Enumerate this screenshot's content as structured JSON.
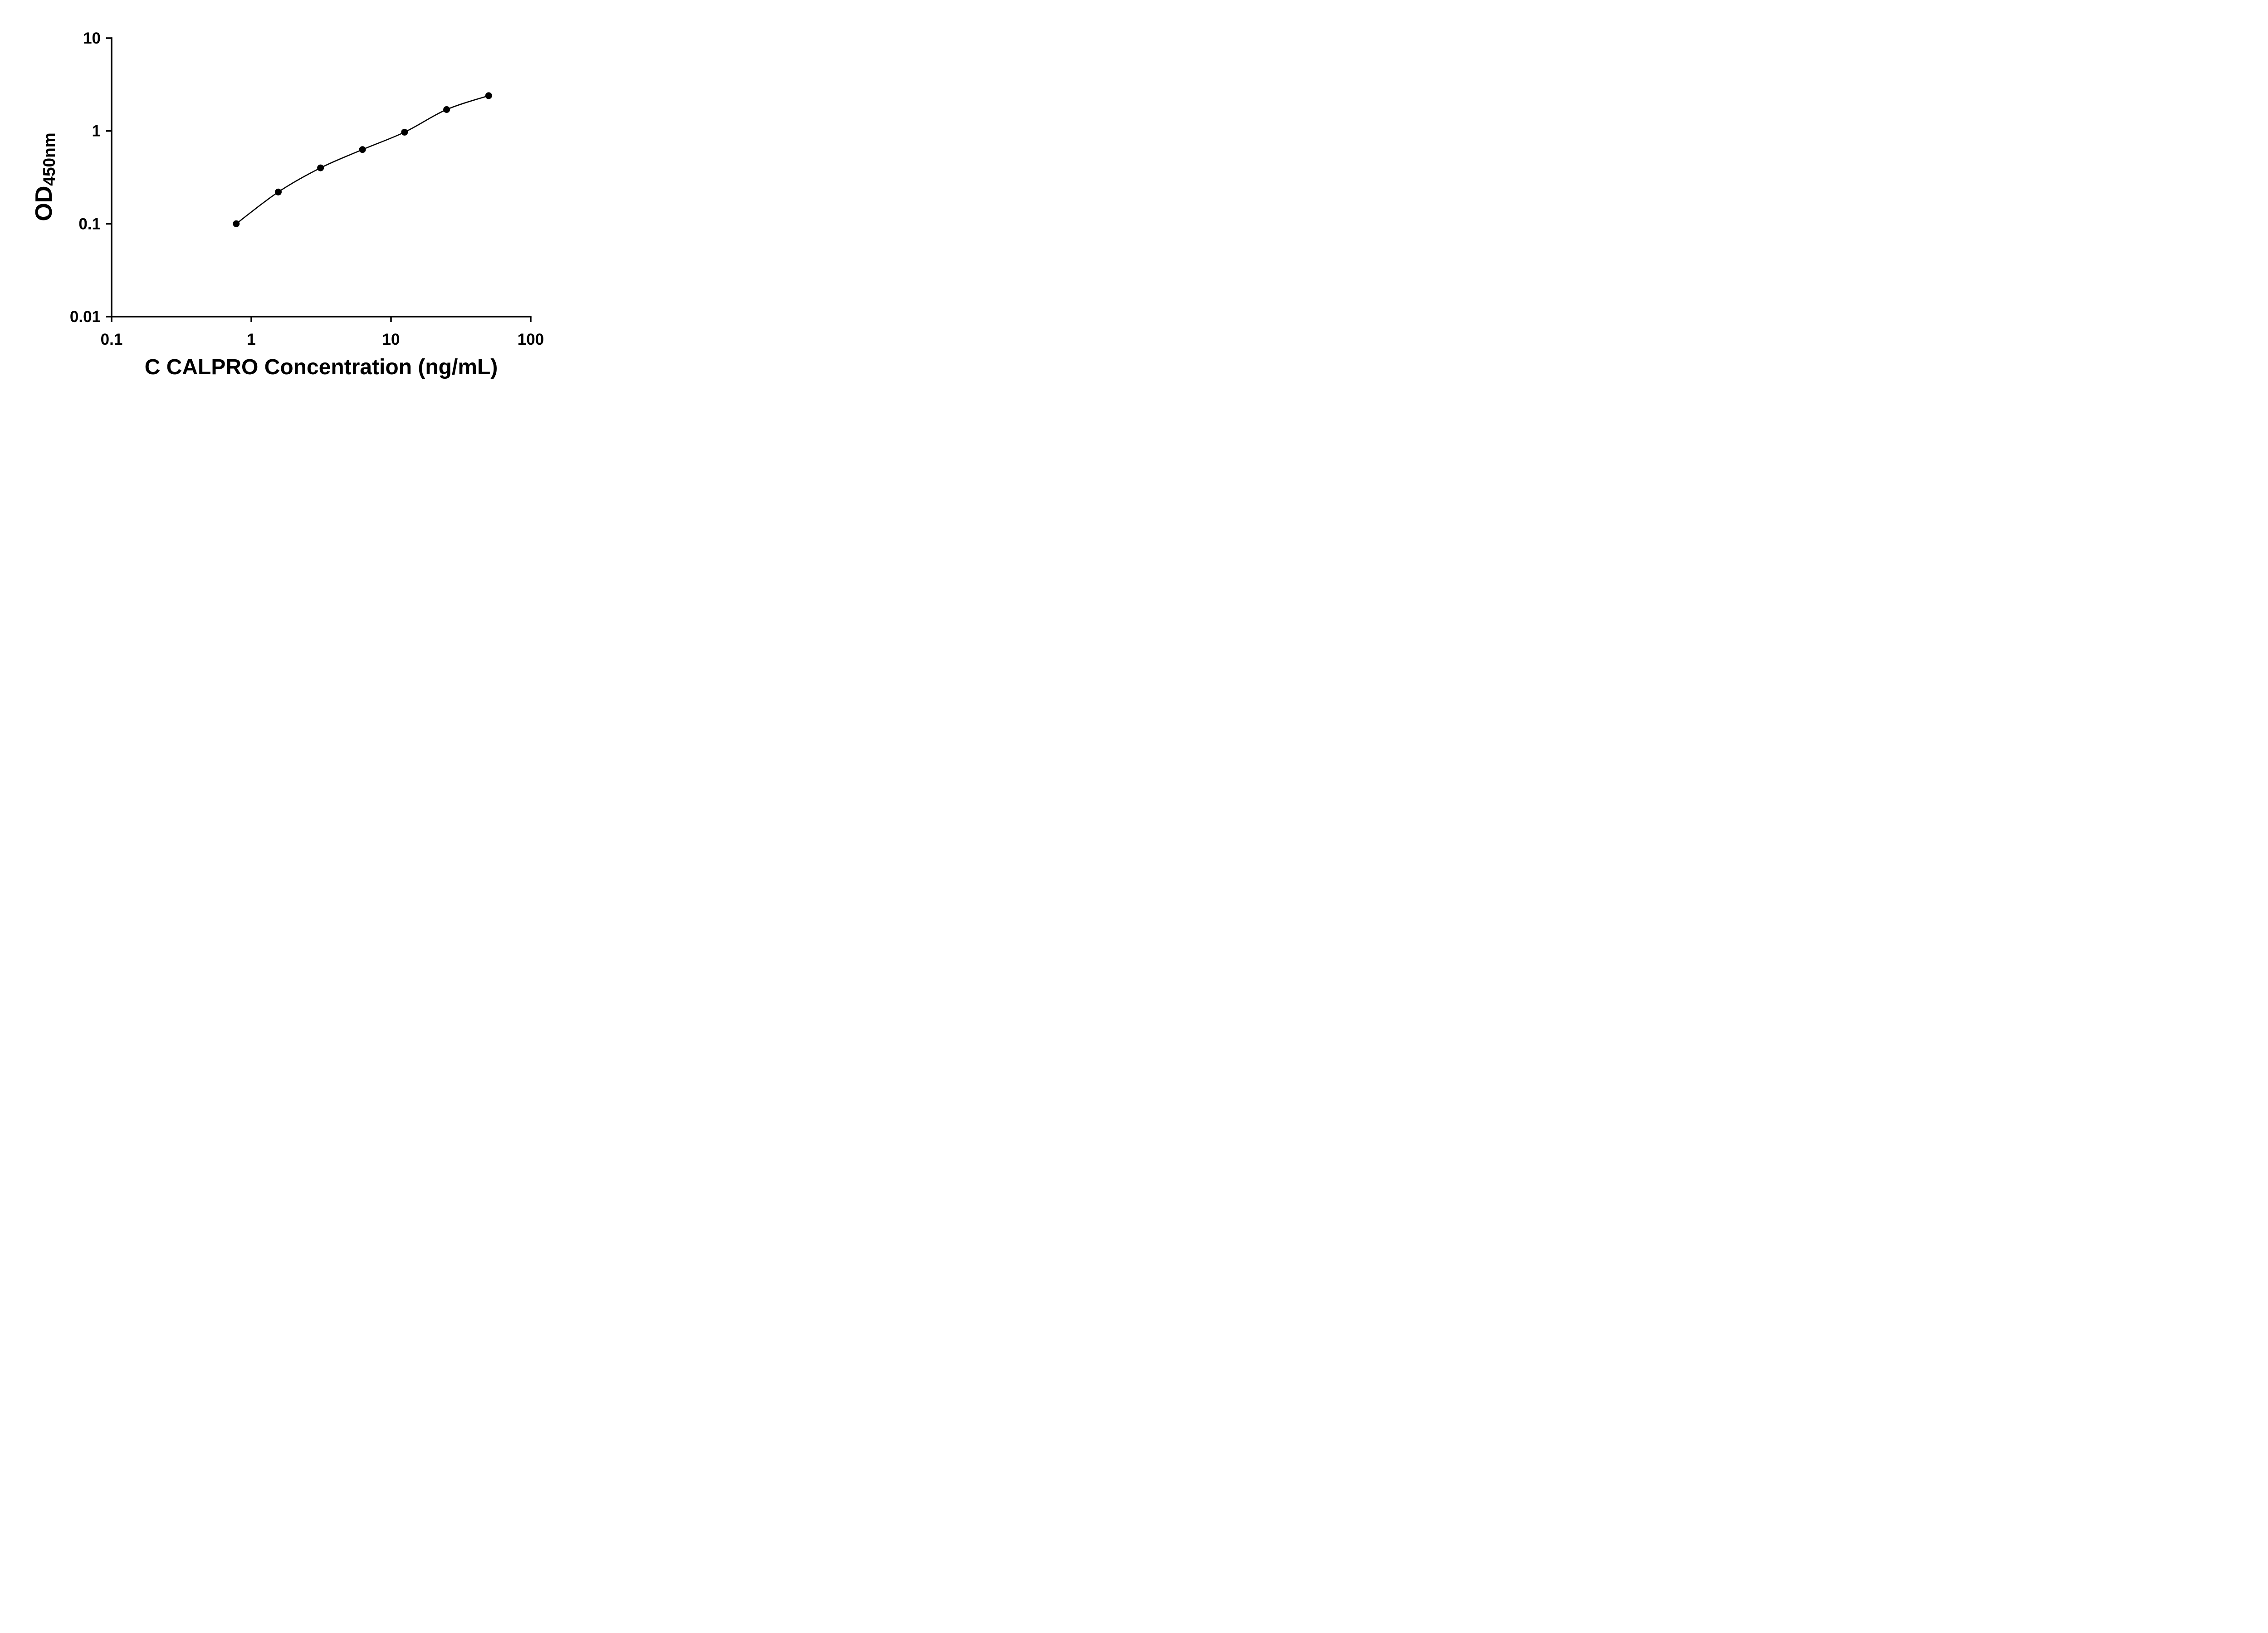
{
  "chart_data": {
    "type": "scatter",
    "title": "",
    "xlabel": "C CALPRO Concentration (ng/mL)",
    "ylabel": "OD450nm",
    "ylabel_main": "OD",
    "ylabel_sub": "450nm",
    "x_scale": "log",
    "y_scale": "log",
    "xlim": [
      0.1,
      100
    ],
    "ylim": [
      0.01,
      10
    ],
    "x_ticks": [
      "0.1",
      "1",
      "10",
      "100"
    ],
    "y_ticks": [
      "0.01",
      "0.1",
      "1",
      "10"
    ],
    "grid": false,
    "legend": false,
    "line_color": "#000000",
    "marker_color": "#000000",
    "background_color": "#ffffff",
    "points": [
      {
        "x": 0.78,
        "y": 0.1
      },
      {
        "x": 1.56,
        "y": 0.22
      },
      {
        "x": 3.13,
        "y": 0.4
      },
      {
        "x": 6.25,
        "y": 0.63
      },
      {
        "x": 12.5,
        "y": 0.97
      },
      {
        "x": 25,
        "y": 1.7
      },
      {
        "x": 50,
        "y": 2.4
      }
    ]
  }
}
